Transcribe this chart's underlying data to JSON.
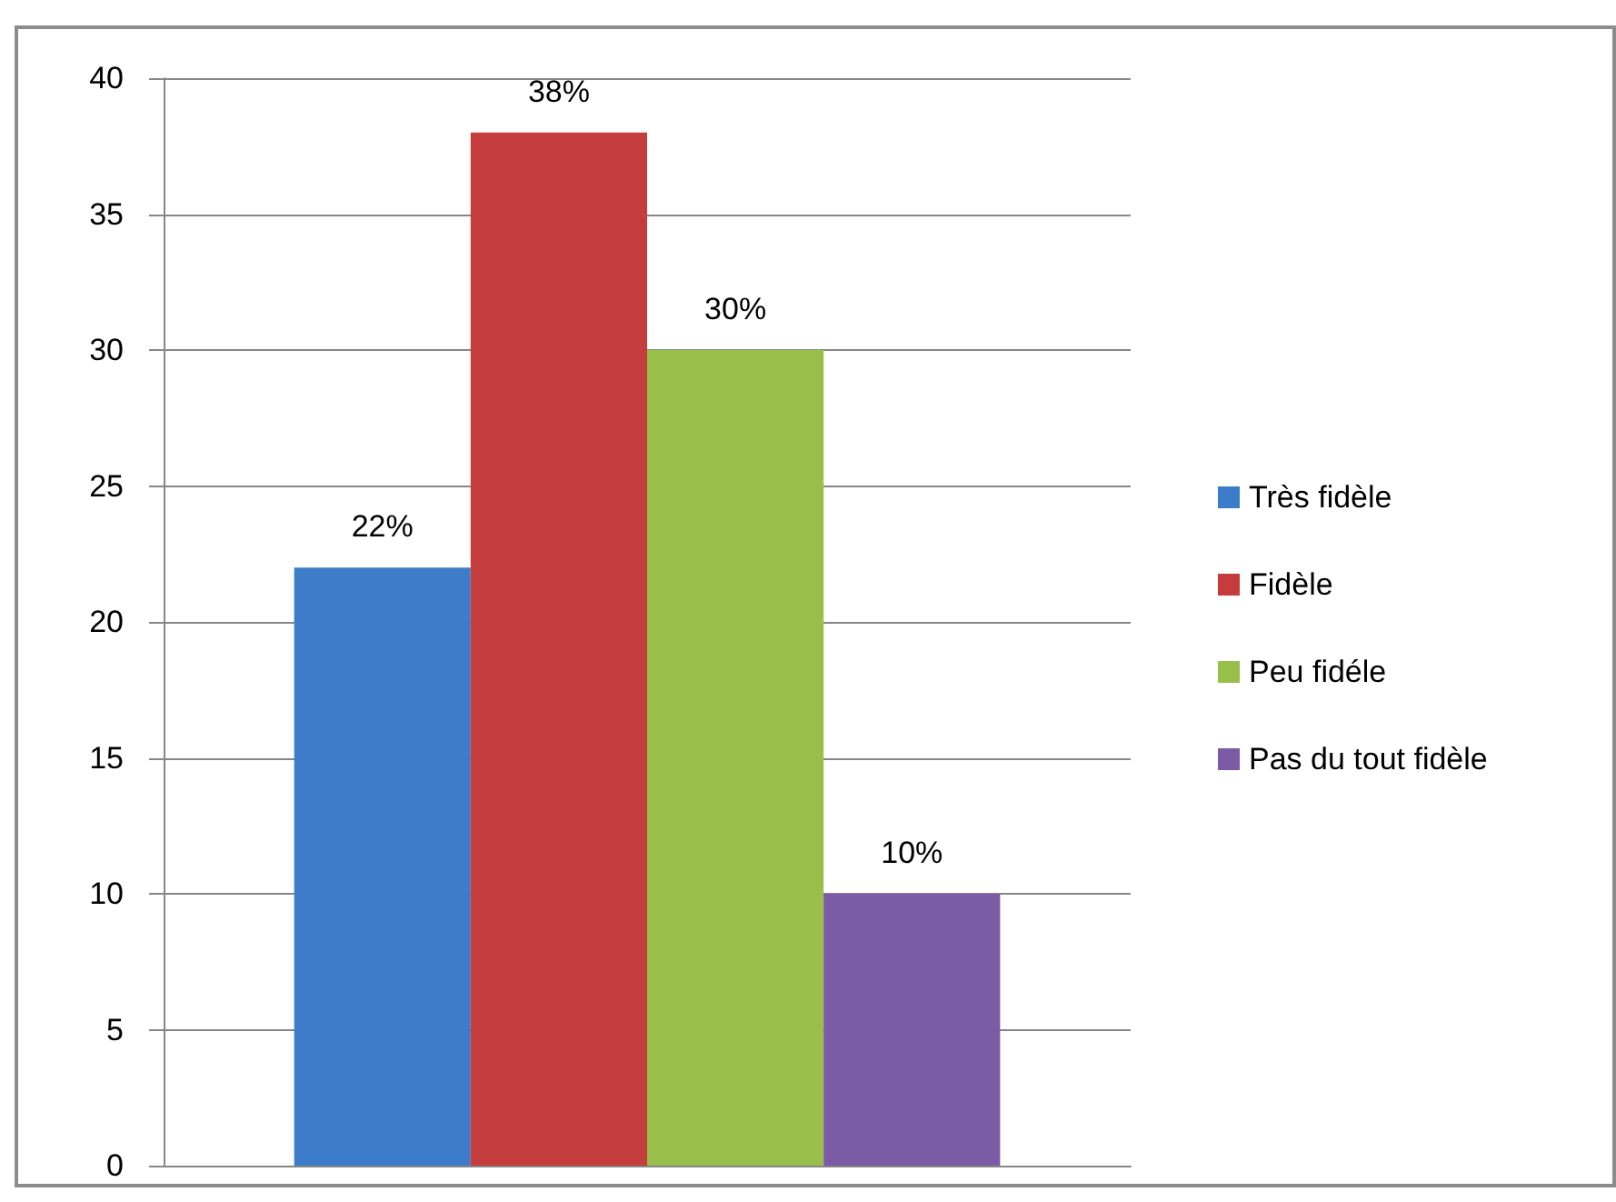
{
  "chart_data": {
    "type": "bar",
    "categories": [
      null
    ],
    "series": [
      {
        "name": "Très fidèle",
        "color": "#3d7cc9",
        "values": [
          22
        ],
        "value_labels": [
          "22%"
        ]
      },
      {
        "name": "Fidèle",
        "color": "#c43c3b",
        "values": [
          38
        ],
        "value_labels": [
          "38%"
        ]
      },
      {
        "name": "Peu fidéle",
        "color": "#98bf4a",
        "values": [
          30
        ],
        "value_labels": [
          "30%"
        ]
      },
      {
        "name": "Pas du tout fidèle",
        "color": "#7b5aa6",
        "values": [
          10
        ],
        "value_labels": [
          "10%"
        ]
      }
    ],
    "ylim": [
      0,
      40
    ],
    "yticks": [
      0,
      5,
      10,
      15,
      20,
      25,
      30,
      35,
      40
    ],
    "grid": "y",
    "legend": "right"
  }
}
